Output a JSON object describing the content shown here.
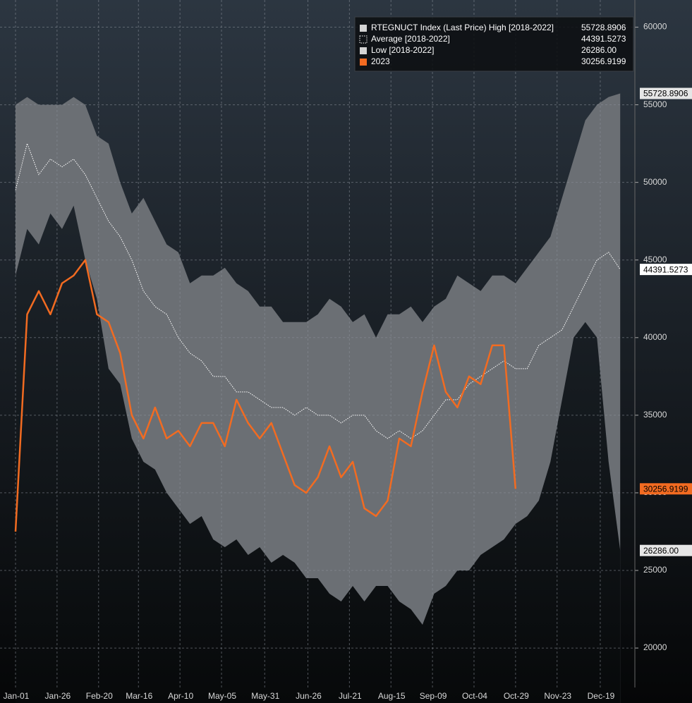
{
  "chart_data": {
    "type": "seasonal",
    "x": [
      0,
      7,
      14,
      21,
      28,
      35,
      42,
      49,
      56,
      63,
      70,
      77,
      84,
      91,
      98,
      105,
      112,
      119,
      126,
      133,
      140,
      147,
      154,
      161,
      168,
      175,
      182,
      189,
      196,
      203,
      210,
      217,
      224,
      231,
      238,
      245,
      252,
      259,
      266,
      273,
      280,
      287,
      294,
      301,
      308,
      315,
      322,
      329,
      336,
      343,
      350,
      357,
      364
    ],
    "series": [
      {
        "name": "RTEGNUCT Index (Last Price) High [2018-2022]",
        "color": "#d4d4d4",
        "last_label": "55728.8906",
        "values": [
          55000,
          55500,
          55000,
          55000,
          55000,
          55500,
          55000,
          53000,
          52500,
          50000,
          48000,
          49000,
          47500,
          46000,
          45500,
          43500,
          44000,
          44000,
          44500,
          43500,
          43000,
          42000,
          42000,
          41000,
          41000,
          41000,
          41500,
          42500,
          42000,
          41000,
          41500,
          40000,
          41500,
          41500,
          42000,
          41000,
          42000,
          42500,
          44000,
          43500,
          43000,
          44000,
          44000,
          43500,
          44500,
          45500,
          46500,
          49000,
          51500,
          54000,
          55000,
          55500,
          55728.8906
        ]
      },
      {
        "name": "Average  [2018-2022]",
        "color": "#ffffff",
        "last_label": "44391.5273",
        "values": [
          49500,
          52500,
          50500,
          51500,
          51000,
          51500,
          50500,
          49000,
          47500,
          46500,
          45000,
          43000,
          42000,
          41500,
          40000,
          39000,
          38500,
          37500,
          37500,
          36500,
          36500,
          36000,
          35500,
          35500,
          35000,
          35500,
          35000,
          35000,
          34500,
          35000,
          35000,
          34000,
          33500,
          34000,
          33500,
          34000,
          35000,
          36000,
          36000,
          37000,
          37500,
          38000,
          38500,
          38000,
          38000,
          39500,
          40000,
          40500,
          42000,
          43500,
          45000,
          45500,
          44391.5273
        ]
      },
      {
        "name": "Low  [2018-2022]",
        "color": "#d4d4d4",
        "last_label": "26286.00",
        "values": [
          44000,
          47000,
          46000,
          48000,
          47000,
          48500,
          45000,
          42500,
          38000,
          37000,
          33500,
          32000,
          31500,
          30000,
          29000,
          28000,
          28500,
          27000,
          26500,
          27000,
          26000,
          26500,
          25500,
          26000,
          25500,
          24500,
          24500,
          23500,
          23000,
          24000,
          23000,
          24000,
          24000,
          23000,
          22500,
          21500,
          23500,
          24000,
          25000,
          25000,
          26000,
          26500,
          27000,
          28000,
          28500,
          29500,
          32000,
          36000,
          40000,
          41000,
          40000,
          32000,
          26286
        ]
      },
      {
        "name": "2023",
        "color": "#f26b21",
        "last_label": "30256.9199",
        "values": [
          27500,
          41500,
          43000,
          41500,
          43500,
          44000,
          45000,
          41500,
          41000,
          39000,
          35000,
          33500,
          35500,
          33500,
          34000,
          33000,
          34500,
          34500,
          33000,
          36000,
          34500,
          33500,
          34500,
          32500,
          30500,
          30000,
          31000,
          33000,
          31000,
          32000,
          29000,
          28500,
          29500,
          33500,
          33000,
          36500,
          39500,
          36500,
          35500,
          37500,
          37000,
          39500,
          39500,
          30256.9199,
          null,
          null,
          null,
          null,
          null,
          null,
          null,
          null,
          null
        ]
      }
    ],
    "xlim": [
      0,
      373
    ],
    "xticks": [
      {
        "value": 0,
        "label": "Jan-01"
      },
      {
        "value": 25,
        "label": "Jan-26"
      },
      {
        "value": 50,
        "label": "Feb-20"
      },
      {
        "value": 74,
        "label": "Mar-16"
      },
      {
        "value": 99,
        "label": "Apr-10"
      },
      {
        "value": 124,
        "label": "May-05"
      },
      {
        "value": 150,
        "label": "May-31"
      },
      {
        "value": 176,
        "label": "Jun-26"
      },
      {
        "value": 201,
        "label": "Jul-21"
      },
      {
        "value": 226,
        "label": "Aug-15"
      },
      {
        "value": 251,
        "label": "Sep-09"
      },
      {
        "value": 276,
        "label": "Oct-04"
      },
      {
        "value": 301,
        "label": "Oct-29"
      },
      {
        "value": 326,
        "label": "Nov-23"
      },
      {
        "value": 352,
        "label": "Dec-19"
      }
    ],
    "ylim": [
      16460,
      61750
    ],
    "yticks": [
      20000,
      25000,
      30000,
      35000,
      40000,
      45000,
      50000,
      55000,
      60000
    ],
    "grid": true
  }
}
